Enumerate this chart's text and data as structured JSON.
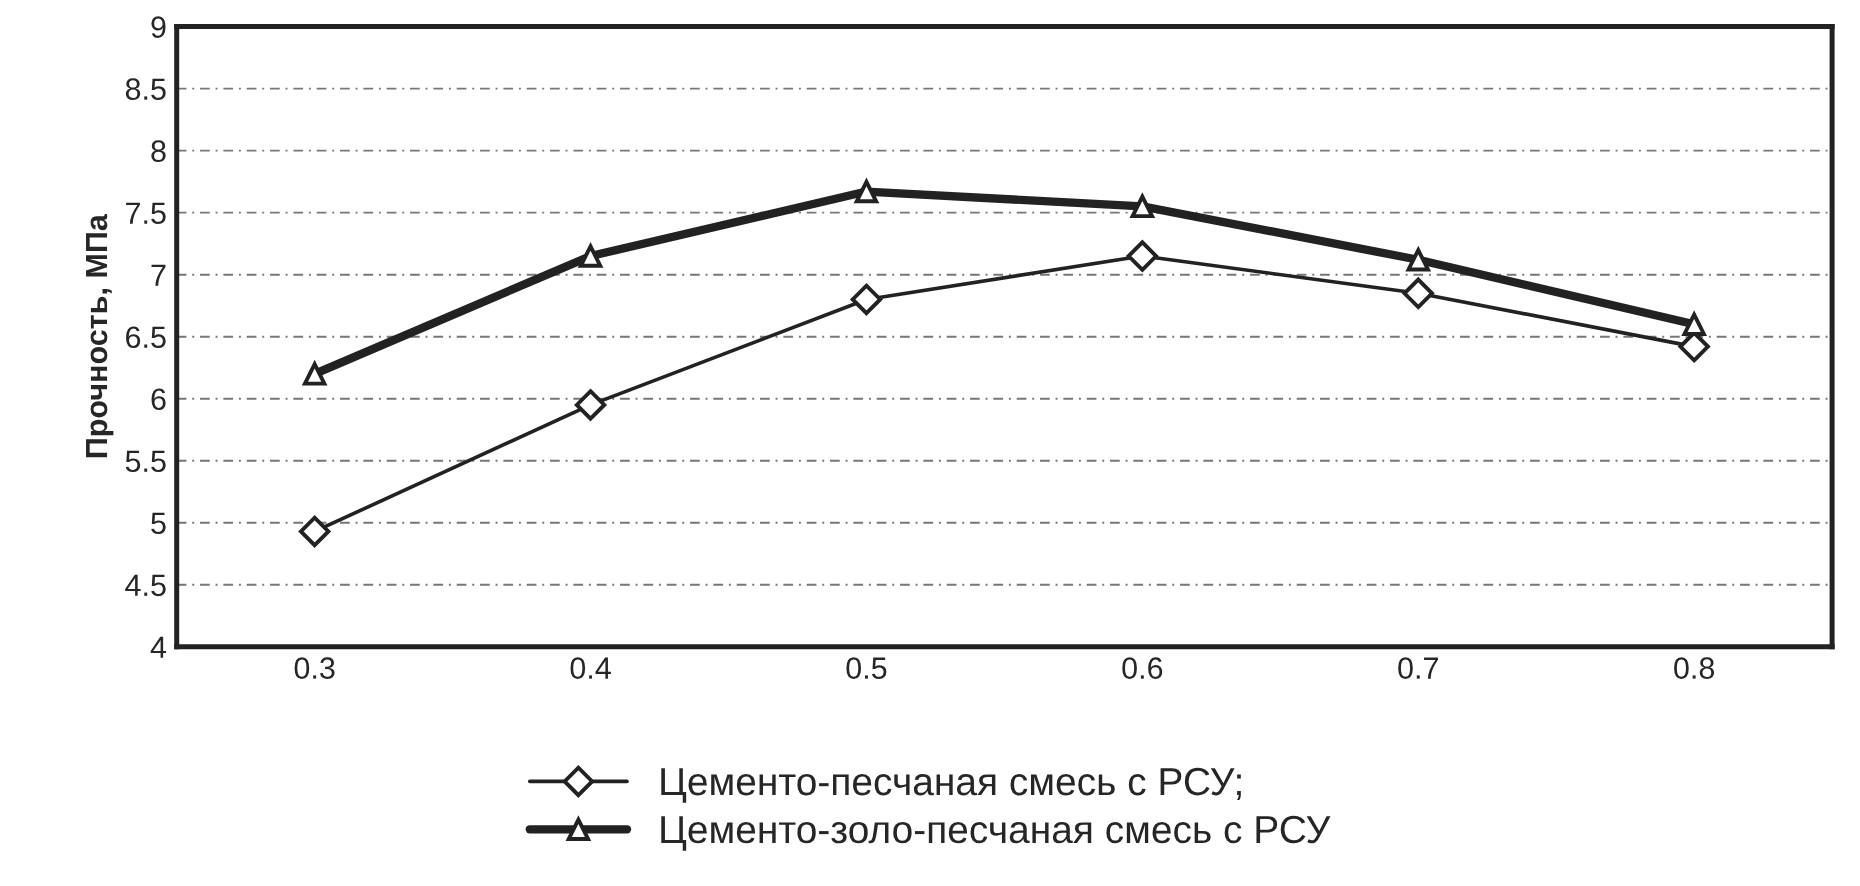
{
  "chart_data": {
    "type": "line",
    "ylabel": "Прочность, МПа",
    "categories": [
      "0.3",
      "0.4",
      "0.5",
      "0.6",
      "0.7",
      "0.8"
    ],
    "series": [
      {
        "name": "Цементо-песчаная смесь с РСУ;",
        "color": "#222222",
        "marker": "diamond",
        "values": [
          4.93,
          5.95,
          6.8,
          7.15,
          6.85,
          6.42
        ]
      },
      {
        "name": "Цементо-золо-песчаная смесь с РСУ",
        "color": "#222222",
        "marker": "triangle",
        "values": [
          6.2,
          7.15,
          7.67,
          7.55,
          7.12,
          6.6
        ]
      }
    ],
    "ylim": [
      4,
      9
    ],
    "yticks": [
      4,
      4.5,
      5,
      5.5,
      6,
      6.5,
      7,
      7.5,
      8,
      8.5,
      9
    ],
    "grid": "y",
    "legend": "bottom",
    "line_style": "solid"
  }
}
